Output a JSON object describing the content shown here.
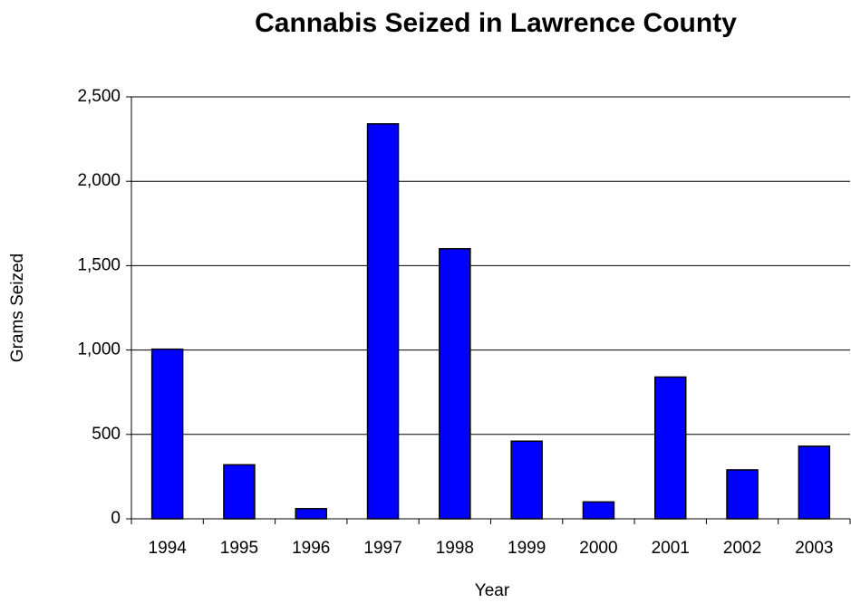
{
  "chart_data": {
    "type": "bar",
    "title": "Cannabis Seized in Lawrence County",
    "x_label": "Year",
    "y_label": "Grams Seized",
    "categories": [
      "1994",
      "1995",
      "1996",
      "1997",
      "1998",
      "1999",
      "2000",
      "2001",
      "2002",
      "2003"
    ],
    "values": [
      1005,
      320,
      60,
      2340,
      1600,
      460,
      100,
      840,
      290,
      430
    ],
    "color": "#0000ff",
    "ylim": [
      0,
      2500
    ],
    "yticks": [
      0,
      500,
      {
        "value": 1000,
        "label": "1,000"
      },
      {
        "value": 1500,
        "label": "1,500"
      },
      {
        "value": 2000,
        "label": "2,000"
      },
      {
        "value": 2500,
        "label": "2,500"
      }
    ],
    "grid": true
  }
}
